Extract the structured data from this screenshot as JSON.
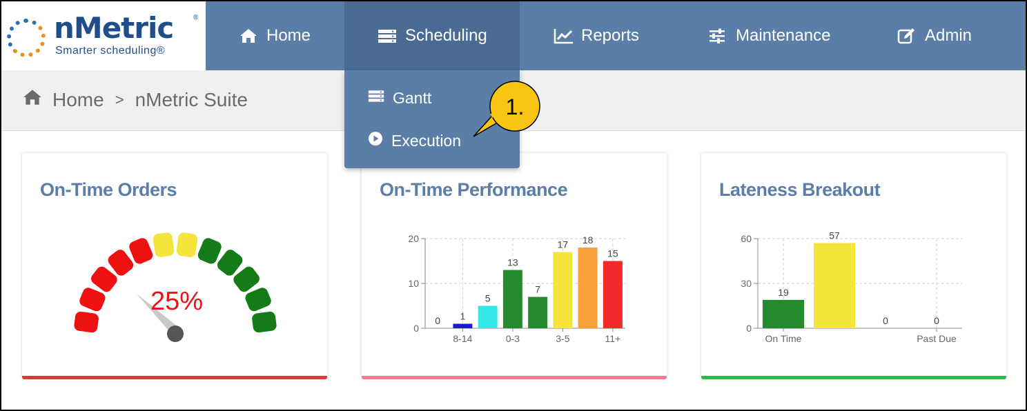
{
  "brand": {
    "name": "nMetric",
    "registered": "®",
    "tagline": "Smarter scheduling®"
  },
  "nav": {
    "items": [
      {
        "label": "Home",
        "icon": "home-icon"
      },
      {
        "label": "Scheduling",
        "icon": "server-icon"
      },
      {
        "label": "Reports",
        "icon": "line-chart-icon"
      },
      {
        "label": "Maintenance",
        "icon": "sliders-icon"
      },
      {
        "label": "Admin",
        "icon": "edit-icon"
      }
    ],
    "active": "Scheduling"
  },
  "breadcrumb": {
    "home": "Home",
    "separator": ">",
    "current": "nMetric Suite"
  },
  "dropdown": {
    "items": [
      {
        "label": "Gantt",
        "icon": "server-icon"
      },
      {
        "label": "Execution",
        "icon": "play-circle-icon"
      }
    ]
  },
  "callout": {
    "label": "1."
  },
  "cards": [
    {
      "title": "On-Time Orders",
      "bottom_color": "#e8323c"
    },
    {
      "title": "On-Time Performance",
      "bottom_color": "#f07d8a"
    },
    {
      "title": "Lateness Breakout",
      "bottom_color": "#2db84a"
    }
  ],
  "colors": {
    "nav": "#5b7ea8",
    "nav_active": "#4a6c94",
    "title": "#5b7ea8",
    "callout": "#f9c513"
  },
  "chart_data": [
    {
      "type": "gauge",
      "value": 25,
      "value_label": "25%",
      "segments": 12,
      "segment_colors": [
        "#ee1111",
        "#ee1111",
        "#ee1111",
        "#ee1111",
        "#ee1111",
        "#f5e43a",
        "#f5e43a",
        "#157a18",
        "#157a18",
        "#157a18",
        "#157a18",
        "#157a18"
      ]
    },
    {
      "type": "bar",
      "ylim": [
        0,
        20
      ],
      "yticks": [
        0,
        10,
        20
      ],
      "xtick_labels": [
        "",
        "8-14",
        "",
        "0-3",
        "",
        "3-5",
        "",
        "11+"
      ],
      "values": [
        0,
        1,
        5,
        13,
        7,
        17,
        18,
        15
      ],
      "colors": [
        "#888888",
        "#1a1ad6",
        "#34e8e8",
        "#26892e",
        "#26892e",
        "#f5e43a",
        "#f9a03a",
        "#f22a2a"
      ],
      "grid": true
    },
    {
      "type": "bar",
      "ylim": [
        0,
        60
      ],
      "yticks": [
        0,
        30,
        60
      ],
      "xtick_labels": [
        "On Time",
        "",
        "",
        "Past Due"
      ],
      "values": [
        19,
        57,
        0,
        0
      ],
      "colors": [
        "#26892e",
        "#f5e43a",
        "#888888",
        "#888888"
      ],
      "grid": true
    }
  ]
}
